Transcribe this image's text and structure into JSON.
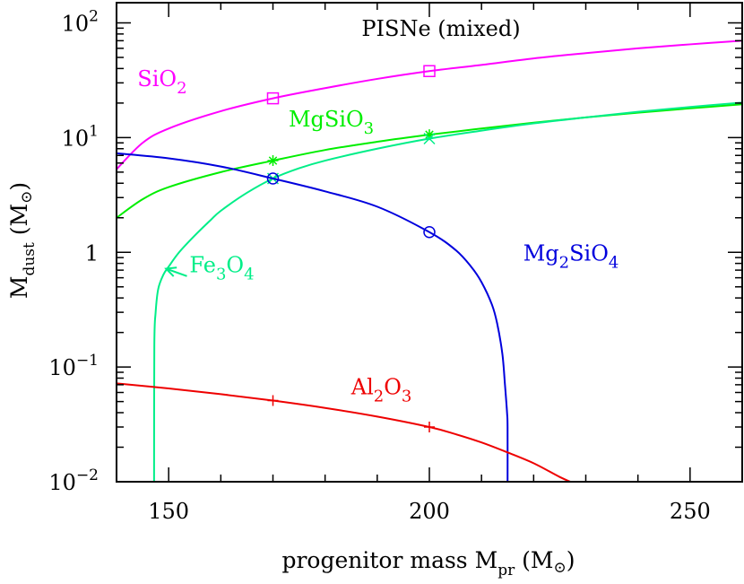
{
  "chart_data": {
    "type": "line",
    "title": "PISNe (mixed)",
    "xlabel": {
      "main": "progenitor mass M",
      "sub": "pr",
      "unit_open": " (M",
      "unit_symbol": "⊙",
      "unit_close": ")"
    },
    "ylabel": {
      "main": "M",
      "sub": "dust",
      "unit_open": "  (M",
      "unit_symbol": "⊙",
      "unit_close": ")"
    },
    "xlim": [
      140,
      260
    ],
    "ylim": [
      0.01,
      150
    ],
    "yscale": "log",
    "x_ticks": [
      {
        "value": 150,
        "label": "150"
      },
      {
        "value": 200,
        "label": "200"
      },
      {
        "value": 250,
        "label": "250"
      }
    ],
    "y_ticks": [
      {
        "value": 0.01,
        "base": "10",
        "exp": "−2"
      },
      {
        "value": 0.1,
        "base": "10",
        "exp": "−1"
      },
      {
        "value": 1,
        "base": "1",
        "exp": ""
      },
      {
        "value": 10,
        "base": "10",
        "exp": "1"
      },
      {
        "value": 100,
        "base": "10",
        "exp": "2"
      }
    ],
    "grid": false,
    "series": [
      {
        "key": "sio2",
        "name_parts": [
          {
            "t": "SiO"
          },
          {
            "t": "2",
            "sub": true
          }
        ],
        "color": "#ff00ff",
        "marker": "square",
        "x": [
          140,
          145,
          150,
          160,
          170,
          180,
          190,
          200,
          210,
          220,
          230,
          240,
          250,
          260
        ],
        "y": [
          5.3,
          9.0,
          12.0,
          17.0,
          22.0,
          27.0,
          32.5,
          38.0,
          43.0,
          49.0,
          54.5,
          60.0,
          65.0,
          70.0
        ],
        "markers": [
          {
            "x": 170,
            "y": 22.0
          },
          {
            "x": 200,
            "y": 38.0
          }
        ]
      },
      {
        "key": "mgsio3",
        "name_parts": [
          {
            "t": "MgSiO"
          },
          {
            "t": "3",
            "sub": true
          }
        ],
        "color": "#00ee00",
        "marker": "asterisk",
        "x": [
          140,
          145,
          150,
          160,
          170,
          180,
          190,
          200,
          210,
          220,
          230,
          240,
          250,
          260
        ],
        "y": [
          2.0,
          2.9,
          3.7,
          5.0,
          6.3,
          7.8,
          9.2,
          10.6,
          12.0,
          13.5,
          15.0,
          16.5,
          18.0,
          19.5
        ],
        "markers": [
          {
            "x": 170,
            "y": 6.3
          },
          {
            "x": 200,
            "y": 10.6
          }
        ]
      },
      {
        "key": "fe3o4",
        "name_parts": [
          {
            "t": "Fe"
          },
          {
            "t": "3",
            "sub": true
          },
          {
            "t": "O"
          },
          {
            "t": "4",
            "sub": true
          }
        ],
        "color": "#00ee88",
        "marker": "cross",
        "x": [
          147.2,
          147.25,
          147.5,
          148,
          149,
          150,
          152,
          155,
          158,
          160,
          165,
          170,
          175,
          180,
          190,
          200,
          210,
          220,
          230,
          240,
          250,
          260
        ],
        "y": [
          0.01,
          0.155,
          0.3,
          0.48,
          0.64,
          0.75,
          1.0,
          1.4,
          1.9,
          2.3,
          3.3,
          4.4,
          5.4,
          6.3,
          8.0,
          9.8,
          11.5,
          13.3,
          15.0,
          16.8,
          18.5,
          20.2
        ],
        "markers": [
          {
            "x": 170,
            "y": 4.4
          },
          {
            "x": 200,
            "y": 9.8
          }
        ]
      },
      {
        "key": "mg2sio4",
        "name_parts": [
          {
            "t": "Mg"
          },
          {
            "t": "2",
            "sub": true
          },
          {
            "t": "SiO"
          },
          {
            "t": "4",
            "sub": true
          }
        ],
        "color": "#0000dd",
        "marker": "circle",
        "x": [
          140,
          150,
          160,
          170,
          180,
          190,
          200,
          205,
          208,
          210,
          212,
          213,
          214,
          214.5,
          214.9,
          215.0,
          215.0
        ],
        "y": [
          7.3,
          6.6,
          5.6,
          4.4,
          3.4,
          2.5,
          1.5,
          1.05,
          0.75,
          0.55,
          0.35,
          0.24,
          0.13,
          0.07,
          0.04,
          0.03,
          0.01
        ],
        "markers": [
          {
            "x": 170,
            "y": 4.4
          },
          {
            "x": 200,
            "y": 1.5
          }
        ]
      },
      {
        "key": "al2o3",
        "name_parts": [
          {
            "t": "Al"
          },
          {
            "t": "2",
            "sub": true
          },
          {
            "t": "O"
          },
          {
            "t": "3",
            "sub": true
          }
        ],
        "color": "#ee0000",
        "marker": "plus",
        "x": [
          140,
          150,
          160,
          170,
          180,
          190,
          200,
          205,
          210,
          215,
          220,
          225,
          227.5
        ],
        "y": [
          0.072,
          0.065,
          0.058,
          0.051,
          0.044,
          0.037,
          0.03,
          0.026,
          0.022,
          0.018,
          0.0145,
          0.011,
          0.0098
        ],
        "markers": [
          {
            "x": 170,
            "y": 0.051
          },
          {
            "x": 200,
            "y": 0.03
          }
        ]
      }
    ],
    "annotations": [
      {
        "series": "sio2",
        "x": 144,
        "y": 28,
        "color": "#ff00ff",
        "anchor": "start"
      },
      {
        "series": "mgsio3",
        "x": 173,
        "y": 12.5,
        "color": "#00ee00",
        "anchor": "start"
      },
      {
        "series": "fe3o4",
        "x": 154,
        "y": 0.67,
        "color": "#00ee88",
        "anchor": "start",
        "arrow": {
          "from_x": 153.5,
          "from_y": 0.62,
          "to_x": 149.5,
          "to_y": 0.72
        }
      },
      {
        "series": "mg2sio4",
        "x": 218,
        "y": 0.85,
        "color": "#0000dd",
        "anchor": "start"
      },
      {
        "series": "al2o3",
        "x": 185,
        "y": 0.058,
        "color": "#ee0000",
        "anchor": "start"
      }
    ]
  }
}
